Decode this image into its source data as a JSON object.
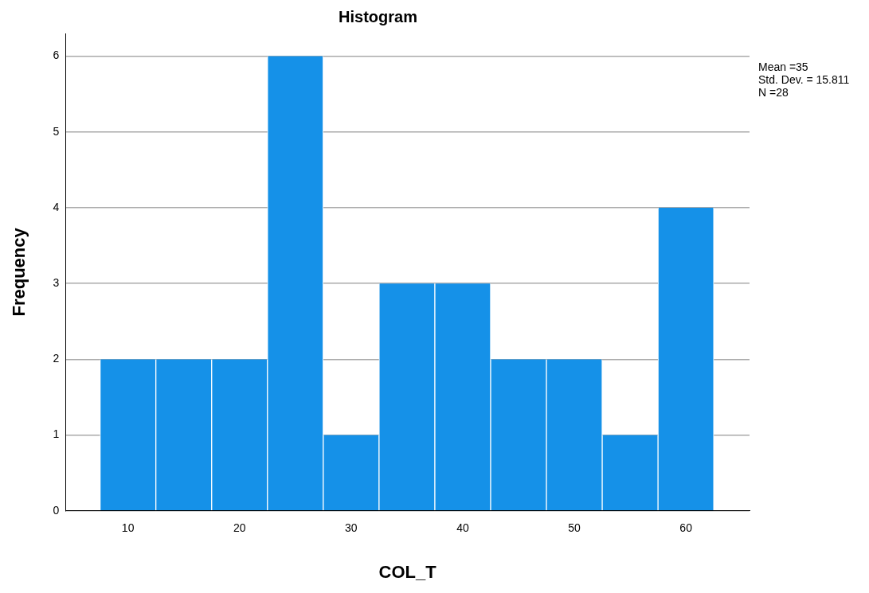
{
  "chart_data": {
    "type": "histogram",
    "title": "Histogram",
    "xlabel": "COL_T",
    "ylabel": "Frequency",
    "bins": [
      7.5,
      12.5,
      17.5,
      22.5,
      27.5,
      32.5,
      37.5,
      42.5,
      47.5,
      52.5,
      57.5,
      62.5
    ],
    "values": [
      2,
      2,
      2,
      6,
      1,
      3,
      3,
      2,
      2,
      1,
      4
    ],
    "color": "#1591e8",
    "xlim": [
      4.4,
      65.7
    ],
    "xticks": [
      10,
      20,
      30,
      40,
      50,
      60
    ],
    "ylim": [
      0,
      6.3
    ],
    "yticks": [
      0,
      1,
      2,
      3,
      4,
      5,
      6
    ],
    "grid": "y",
    "legend": false,
    "annotations": [
      "Mean =35",
      "Std. Dev. = 15.811",
      "N =28"
    ]
  }
}
